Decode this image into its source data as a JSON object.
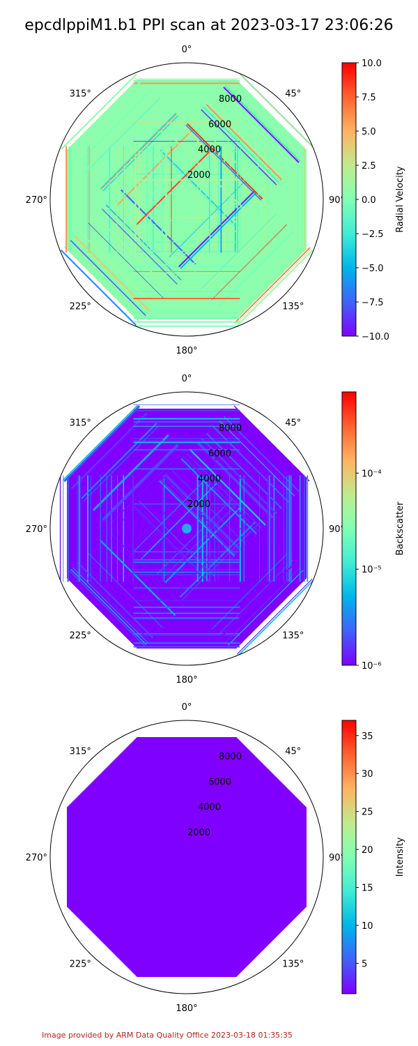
{
  "title": "epcdlppiM1.b1 PPI scan at 2023-03-17 23:06:26",
  "footer": "Image provided by ARM Data Quality Office 2023-03-18 01:35:35",
  "angle_labels": [
    "0°",
    "45°",
    "90°",
    "135°",
    "180°",
    "225°",
    "270°",
    "315°"
  ],
  "radial_ticks": [
    "2000",
    "4000",
    "6000",
    "8000"
  ],
  "chart_data": [
    {
      "type": "heatmap",
      "projection": "polar",
      "variable": "Radial Velocity",
      "colormap": "rainbow",
      "scale": "linear",
      "clim": [
        -10,
        10
      ],
      "colorbar_ticks": [
        "10.0",
        "7.5",
        "5.0",
        "2.5",
        "0.0",
        "−2.5",
        "−5.0",
        "−7.5",
        "−10.0"
      ],
      "colorbar_label": "Radial Velocity",
      "r_ticks": [
        2000,
        4000,
        6000,
        8000
      ],
      "r_max": 10000,
      "scan_shape": "octagon",
      "dominant_value": 0.5
    },
    {
      "type": "heatmap",
      "projection": "polar",
      "variable": "Backscatter",
      "colormap": "rainbow",
      "scale": "log",
      "clim": [
        1e-06,
        0.0007
      ],
      "colorbar_ticks": [
        "10⁻⁴",
        "10⁻⁵",
        "10⁻⁶"
      ],
      "colorbar_label": "Backscatter",
      "r_ticks": [
        2000,
        4000,
        6000,
        8000
      ],
      "r_max": 10000,
      "scan_shape": "octagon",
      "dominant_value": 1e-06
    },
    {
      "type": "heatmap",
      "projection": "polar",
      "variable": "Intensity",
      "colormap": "rainbow",
      "scale": "linear",
      "clim": [
        1,
        37
      ],
      "colorbar_ticks": [
        "35",
        "30",
        "25",
        "20",
        "15",
        "10",
        "5"
      ],
      "colorbar_label": "Intensity",
      "r_ticks": [
        2000,
        4000,
        6000,
        8000
      ],
      "r_max": 10000,
      "scan_shape": "octagon",
      "dominant_value": 1
    }
  ]
}
